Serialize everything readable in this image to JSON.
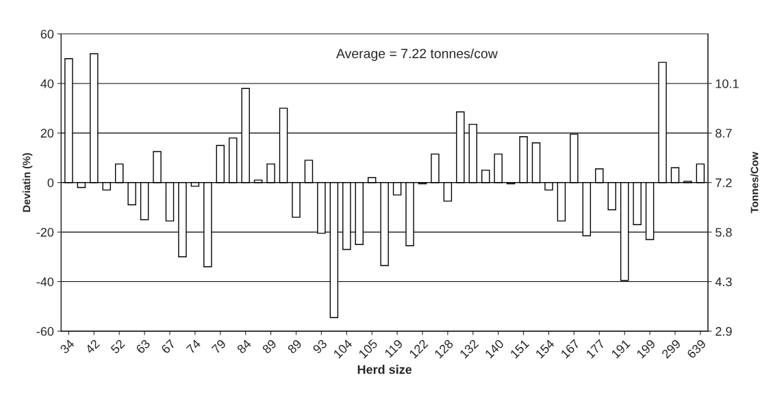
{
  "chart_data": {
    "type": "bar",
    "xlabel": "Herd size",
    "ylabel": "Deviatin (%)",
    "y2label": "Tonnes/Cow",
    "categories": [
      "34",
      null,
      "42",
      null,
      "52",
      null,
      "63",
      null,
      "67",
      null,
      "74",
      null,
      "79",
      null,
      "84",
      null,
      "89",
      null,
      "89",
      null,
      "93",
      null,
      "104",
      null,
      "105",
      null,
      "119",
      null,
      "122",
      null,
      "128",
      null,
      "132",
      null,
      "140",
      null,
      "151",
      null,
      "154",
      null,
      "167",
      null,
      "177",
      null,
      "191",
      null,
      "199",
      null,
      "299",
      null,
      "639"
    ],
    "values": [
      50,
      -2,
      52,
      -3,
      7.5,
      -9,
      -15,
      12.5,
      -15.5,
      -30,
      -1.5,
      -34,
      15,
      18,
      38,
      1,
      7.5,
      30,
      -14,
      9,
      -20.5,
      -54.5,
      -27,
      -25,
      2,
      -33.5,
      -5,
      -25.5,
      -0.5,
      11.5,
      -7.5,
      28.5,
      23.5,
      5,
      11.5,
      -0.5,
      18.5,
      16,
      -3,
      -15.5,
      19.5,
      -21.5,
      5.5,
      -11,
      -39.5,
      -17,
      -23,
      48.5,
      6,
      0.5,
      7.5
    ],
    "color": "#ffffff",
    "ylim": [
      -60,
      60
    ],
    "yticks": [
      -60,
      -40,
      -20,
      0,
      20,
      40,
      60
    ],
    "y2lim": [
      2.888,
      11.552
    ],
    "y2ticks": [
      {
        "value": 2.888,
        "label": "2.9"
      },
      {
        "value": 4.332,
        "label": "4.3"
      },
      {
        "value": 5.776,
        "label": "5.8"
      },
      {
        "value": 7.22,
        "label": "7.2"
      },
      {
        "value": 8.664,
        "label": "8.7"
      },
      {
        "value": 10.108,
        "label": "10.1"
      }
    ],
    "annotations": [
      "Average = 7.22 tonnes/cow"
    ],
    "grid": "y"
  }
}
